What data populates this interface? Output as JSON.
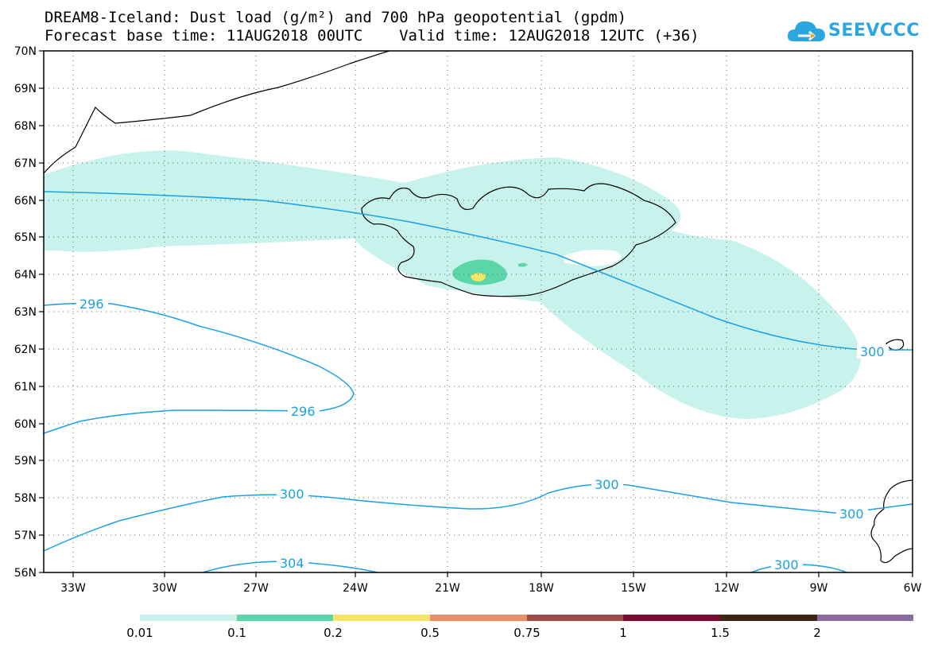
{
  "header": {
    "title_line1": "DREAM8-Iceland: Dust load (g/m²) and 700 hPa geopotential (gpdm)",
    "title_line2": "Forecast base time: 11AUG2018 00UTC    Valid time: 12AUG2018 12UTC (+36)"
  },
  "logo": {
    "text": "SEEVCCC"
  },
  "map": {
    "lat_labels": [
      "70N",
      "69N",
      "68N",
      "67N",
      "66N",
      "65N",
      "64N",
      "63N",
      "62N",
      "61N",
      "60N",
      "59N",
      "58N",
      "57N",
      "56N"
    ],
    "lon_labels": [
      "33W",
      "30W",
      "27W",
      "24W",
      "21W",
      "18W",
      "15W",
      "12W",
      "9W",
      "6W"
    ],
    "contour_labels": [
      "296",
      "296",
      "300",
      "300",
      "300",
      "304",
      "300"
    ],
    "colors": {
      "dust_low": "#c8f2ec",
      "dust_mid": "#5bd6a8",
      "dust_high": "#f5e66a",
      "contour": "#1aa0e8"
    }
  },
  "colorbar": {
    "colors": [
      "#c8f2ec",
      "#5bd6a8",
      "#f5e66a",
      "#ea8e66",
      "#a24a48",
      "#7a0a30",
      "#3a2616",
      "#8a6aa0"
    ],
    "labels": [
      "0.01",
      "0.1",
      "0.2",
      "0.5",
      "0.75",
      "1",
      "1.5",
      "2"
    ]
  }
}
